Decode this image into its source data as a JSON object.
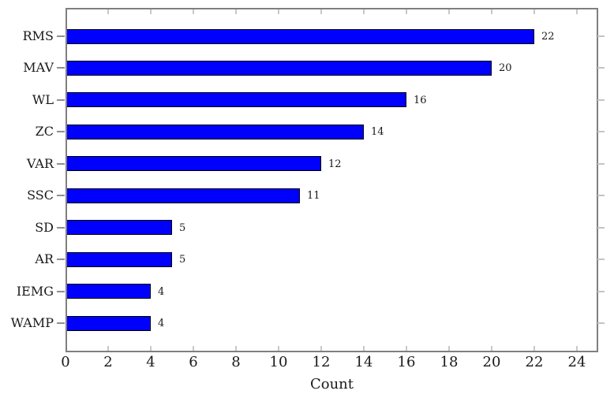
{
  "chart_data": {
    "type": "bar",
    "orientation": "horizontal",
    "categories": [
      "RMS",
      "MAV",
      "WL",
      "ZC",
      "VAR",
      "SSC",
      "SD",
      "AR",
      "IEMG",
      "WAMP"
    ],
    "values": [
      22,
      20,
      16,
      14,
      12,
      11,
      5,
      5,
      4,
      4
    ],
    "bar_value_labels": [
      "22",
      "20",
      "16",
      "14",
      "12",
      "11",
      "5",
      "5",
      "4",
      "4"
    ],
    "xlabel": "Count",
    "ylabel": "",
    "xlim": [
      0,
      25
    ],
    "xticks": [
      0,
      2,
      4,
      6,
      8,
      10,
      12,
      14,
      16,
      18,
      20,
      22,
      24
    ],
    "grid": false,
    "legend_position": "none",
    "colors": {
      "bar_fill": "#0000ff",
      "bar_border": "#000000",
      "frame": "#7f7f7f",
      "tick_inner": "#c8c8c8",
      "tick_outer_left": "#8f8f8f",
      "tick_outer_right": "#c4c4c4",
      "text": "#1a1a1a"
    }
  }
}
